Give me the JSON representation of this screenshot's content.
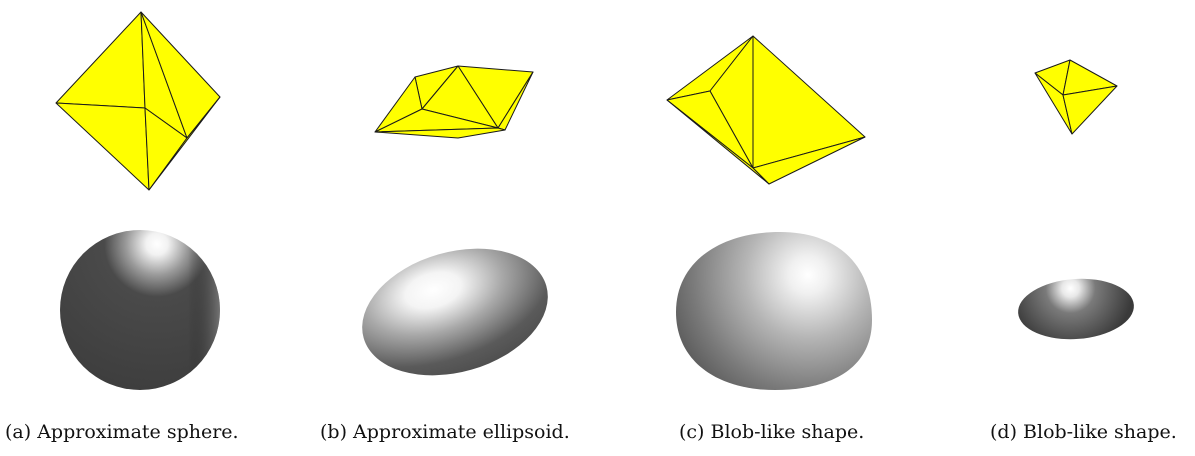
{
  "figure": {
    "subfigures": [
      {
        "caption": "(a) Approximate sphere."
      },
      {
        "caption": "(b) Approximate ellipsoid."
      },
      {
        "caption": "(c) Blob-like shape."
      },
      {
        "caption": "(d) Blob-like shape."
      }
    ],
    "colors": {
      "polyhedron_fill": "#ffff00",
      "polyhedron_edge": "#1a1a1a",
      "surface_dark": "#444444",
      "highlight": "#ffffff"
    }
  }
}
